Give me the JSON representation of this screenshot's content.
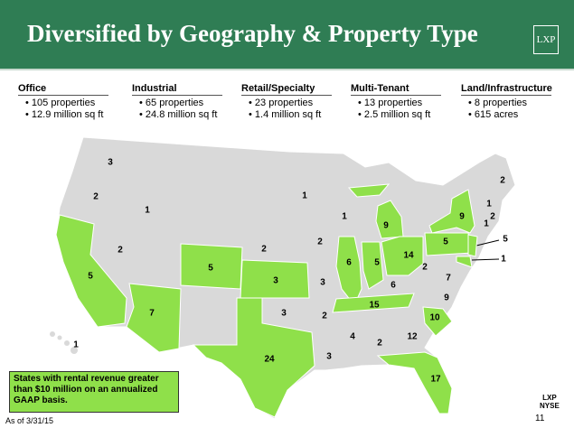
{
  "header": {
    "title": "Diversified by Geography & Property Type",
    "logo": "LXP"
  },
  "property_types": [
    {
      "name": "Office",
      "lines": [
        "105 properties",
        "12.9 million sq ft"
      ]
    },
    {
      "name": "Industrial",
      "lines": [
        "65 properties",
        "24.8 million  sq ft"
      ]
    },
    {
      "name": "Retail/Specialty",
      "lines": [
        "23 properties",
        "1.4 million  sq ft"
      ]
    },
    {
      "name": "Multi-Tenant",
      "lines": [
        "13 properties",
        "2.5 million sq ft"
      ]
    },
    {
      "name": "Land/Infrastructure",
      "lines": [
        "8 properties",
        "615 acres"
      ]
    }
  ],
  "map": {
    "highlight_color": "#8fe04a",
    "states": [
      {
        "label": 3,
        "highlighted": false
      },
      {
        "label": 2,
        "highlighted": false
      },
      {
        "label": 1,
        "highlighted": false
      },
      {
        "label": 5,
        "highlighted": true
      },
      {
        "label": 2,
        "highlighted": false
      },
      {
        "label": 7,
        "highlighted": true
      },
      {
        "label": 5,
        "highlighted": true
      },
      {
        "label": 3,
        "highlighted": true
      },
      {
        "label": 24,
        "highlighted": true
      },
      {
        "label": 1,
        "highlighted": false
      },
      {
        "label": 1,
        "highlighted": false
      },
      {
        "label": 9,
        "highlighted": true
      },
      {
        "label": 9,
        "highlighted": true
      },
      {
        "label": 2,
        "highlighted": false
      },
      {
        "label": 1,
        "highlighted": false
      },
      {
        "label": 2,
        "highlighted": false
      },
      {
        "label": 1,
        "highlighted": false
      },
      {
        "label": 2,
        "highlighted": false
      },
      {
        "label": 2,
        "highlighted": false
      },
      {
        "label": 6,
        "highlighted": true
      },
      {
        "label": 5,
        "highlighted": true
      },
      {
        "label": 14,
        "highlighted": true
      },
      {
        "label": 5,
        "highlighted": true
      },
      {
        "label": 5,
        "highlighted": true
      },
      {
        "label": 1,
        "highlighted": true
      },
      {
        "label": 3,
        "highlighted": false
      },
      {
        "label": 6,
        "highlighted": false
      },
      {
        "label": 2,
        "highlighted": false
      },
      {
        "label": 7,
        "highlighted": false
      },
      {
        "label": 3,
        "highlighted": false
      },
      {
        "label": 15,
        "highlighted": true
      },
      {
        "label": 9,
        "highlighted": false
      },
      {
        "label": 2,
        "highlighted": false
      },
      {
        "label": 10,
        "highlighted": true
      },
      {
        "label": 4,
        "highlighted": false
      },
      {
        "label": 2,
        "highlighted": false
      },
      {
        "label": 12,
        "highlighted": false
      },
      {
        "label": 3,
        "highlighted": false
      },
      {
        "label": 17,
        "highlighted": true
      },
      {
        "label": 1,
        "highlighted": false
      }
    ]
  },
  "legend": "States with rental revenue greater than $10 million on an annualized GAAP basis.",
  "footnote": "As of 3/31/15",
  "footer": {
    "logo": "LXP",
    "exchange": "NYSE",
    "page_number": "11"
  }
}
